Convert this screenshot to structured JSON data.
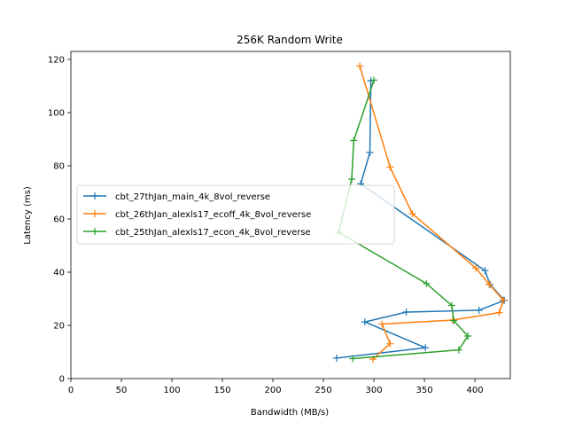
{
  "chart_data": {
    "type": "line",
    "title": "256K  Random Write",
    "xlabel": "Bandwidth (MB/s)",
    "ylabel": "Latency (ms)",
    "xlim": [
      0,
      435
    ],
    "ylim": [
      0,
      123
    ],
    "xticks": [
      0,
      50,
      100,
      150,
      200,
      250,
      300,
      350,
      400
    ],
    "yticks": [
      0,
      20,
      40,
      60,
      80,
      100,
      120
    ],
    "grid": false,
    "legend_position": "center-left",
    "series": [
      {
        "name": "cbt_27thJan_main_4k_8vol_reverse",
        "color": "#1f77b4",
        "marker": "+",
        "points": [
          [
            263,
            7.7
          ],
          [
            351,
            11.6
          ],
          [
            291,
            21.3
          ],
          [
            332,
            25.0
          ],
          [
            404,
            25.7
          ],
          [
            429,
            29.4
          ],
          [
            415,
            35.4
          ],
          [
            410,
            40.6
          ],
          [
            287,
            73.2
          ],
          [
            296,
            85.0
          ],
          [
            297,
            112.0
          ]
        ]
      },
      {
        "name": "cbt_26thJan_alexls17_ecoff_4k_8vol_reverse",
        "color": "#ff7f0e",
        "marker": "+",
        "points": [
          [
            299,
            7.3
          ],
          [
            316,
            13.1
          ],
          [
            308,
            20.5
          ],
          [
            378,
            22.0
          ],
          [
            424,
            24.8
          ],
          [
            428,
            29.5
          ],
          [
            414,
            35.5
          ],
          [
            401,
            41.5
          ],
          [
            338,
            62.0
          ],
          [
            316,
            79.5
          ],
          [
            286,
            117.5
          ]
        ]
      },
      {
        "name": "cbt_25thJan_alexls17_econ_4k_8vol_reverse",
        "color": "#2ca02c",
        "marker": "+",
        "points": [
          [
            279,
            7.5
          ],
          [
            384,
            10.8
          ],
          [
            393,
            16.0
          ],
          [
            379,
            21.8
          ],
          [
            377,
            27.5
          ],
          [
            352,
            35.7
          ],
          [
            265,
            55.0
          ],
          [
            278,
            75.0
          ],
          [
            280,
            89.5
          ],
          [
            300,
            112.2
          ]
        ]
      }
    ]
  }
}
